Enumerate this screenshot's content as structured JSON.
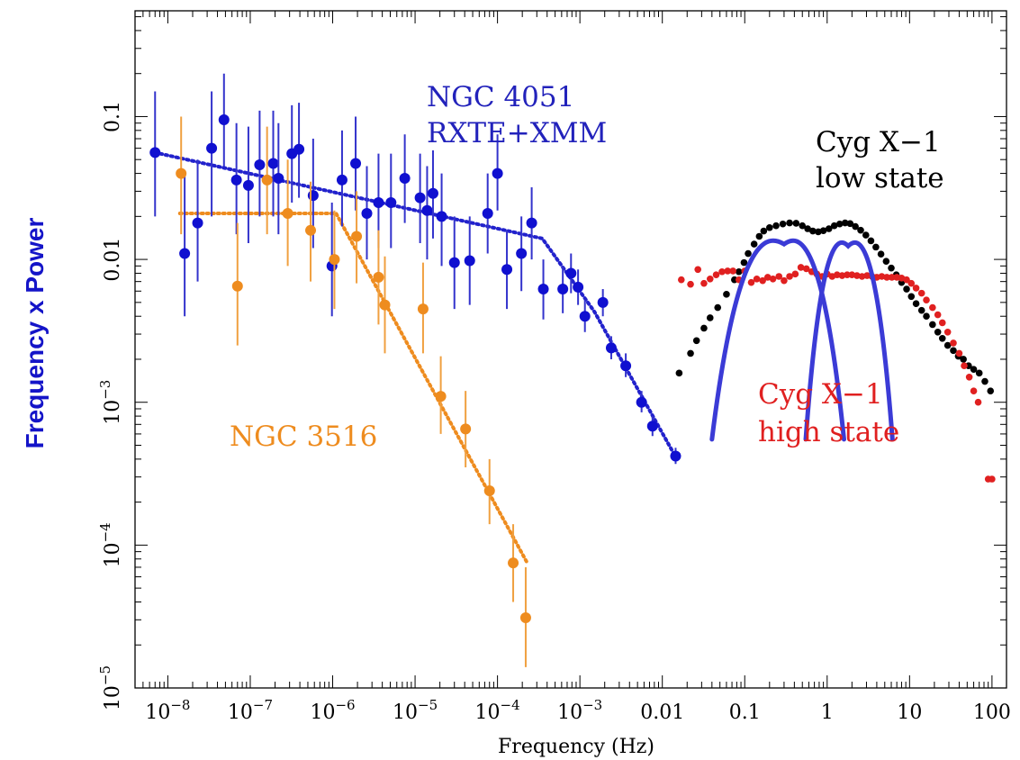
{
  "chart_data": {
    "type": "scatter",
    "xlabel": "Frequency (Hz)",
    "ylabel": "Frequency x Power",
    "xscale": "log",
    "yscale": "log",
    "xlim": [
      4e-09,
      150
    ],
    "ylim": [
      1e-05,
      0.55
    ],
    "x_ticks": [
      {
        "value": 1e-08,
        "base": "10",
        "exp": "−8"
      },
      {
        "value": 1e-07,
        "base": "10",
        "exp": "−7"
      },
      {
        "value": 1e-06,
        "base": "10",
        "exp": "−6"
      },
      {
        "value": 1e-05,
        "base": "10",
        "exp": "−5"
      },
      {
        "value": 0.0001,
        "base": "10",
        "exp": "−4"
      },
      {
        "value": 0.001,
        "base": "10",
        "exp": "−3"
      },
      {
        "value": 0.01,
        "base": "0.01",
        "exp": ""
      },
      {
        "value": 0.1,
        "base": "0.1",
        "exp": ""
      },
      {
        "value": 1,
        "base": "1",
        "exp": ""
      },
      {
        "value": 10,
        "base": "10",
        "exp": ""
      },
      {
        "value": 100,
        "base": "100",
        "exp": ""
      }
    ],
    "y_ticks": [
      {
        "value": 0.1,
        "base": "0.1",
        "exp": ""
      },
      {
        "value": 0.01,
        "base": "0.01",
        "exp": ""
      },
      {
        "value": 0.001,
        "base": "10",
        "exp": "−3"
      },
      {
        "value": 0.0001,
        "base": "10",
        "exp": "−4"
      },
      {
        "value": 1e-05,
        "base": "10",
        "exp": "−5"
      }
    ],
    "annotations": [
      {
        "lines": [
          "NGC 4051",
          "RXTE+XMM"
        ],
        "color": "#2222bb"
      },
      {
        "lines": [
          "Cyg X−1",
          "low state"
        ],
        "color": "#000000"
      },
      {
        "lines": [
          "NGC 3516"
        ],
        "color": "#ee8c1f"
      },
      {
        "lines": [
          "Cyg X−1",
          "high state"
        ],
        "color": "#e02020"
      }
    ],
    "series": [
      {
        "name": "NGC 4051",
        "color": "#1010d0",
        "errcolor": "#3333cc",
        "marker": "circle",
        "points": [
          [
            7e-09,
            0.056,
            0.02,
            0.15
          ],
          [
            1.6e-08,
            0.011,
            0.004,
            0.04
          ],
          [
            2.3e-08,
            0.018,
            0.007,
            0.05
          ],
          [
            3.4e-08,
            0.06,
            0.02,
            0.15
          ],
          [
            4.8e-08,
            0.095,
            0.045,
            0.2
          ],
          [
            6.8e-08,
            0.036,
            0.015,
            0.09
          ],
          [
            9.5e-08,
            0.033,
            0.013,
            0.085
          ],
          [
            1.3e-07,
            0.046,
            0.02,
            0.11
          ],
          [
            1.9e-07,
            0.047,
            0.02,
            0.11
          ],
          [
            2.2e-07,
            0.037,
            0.015,
            0.09
          ],
          [
            3.2e-07,
            0.055,
            0.025,
            0.12
          ],
          [
            3.9e-07,
            0.059,
            0.027,
            0.125
          ],
          [
            5.8e-07,
            0.028,
            0.012,
            0.07
          ],
          [
            9.8e-07,
            0.009,
            0.004,
            0.025
          ],
          [
            1.3e-06,
            0.036,
            0.017,
            0.08
          ],
          [
            1.9e-06,
            0.047,
            0.022,
            0.1
          ],
          [
            2.6e-06,
            0.021,
            0.01,
            0.045
          ],
          [
            3.6e-06,
            0.025,
            0.012,
            0.055
          ],
          [
            5.1e-06,
            0.025,
            0.012,
            0.055
          ],
          [
            7.5e-06,
            0.037,
            0.018,
            0.075
          ],
          [
            1.15e-05,
            0.027,
            0.013,
            0.055
          ],
          [
            1.4e-05,
            0.022,
            0.01,
            0.045
          ],
          [
            1.65e-05,
            0.029,
            0.014,
            0.058
          ],
          [
            2.1e-05,
            0.02,
            0.009,
            0.04
          ],
          [
            3e-05,
            0.0095,
            0.0045,
            0.02
          ],
          [
            4.6e-05,
            0.0098,
            0.0048,
            0.02
          ],
          [
            7.6e-05,
            0.021,
            0.011,
            0.04
          ],
          [
            0.0001,
            0.04,
            0.022,
            0.075
          ],
          [
            0.00013,
            0.0085,
            0.0045,
            0.016
          ],
          [
            0.000195,
            0.011,
            0.006,
            0.02
          ],
          [
            0.00026,
            0.018,
            0.01,
            0.032
          ],
          [
            0.00036,
            0.0062,
            0.0038,
            0.01
          ],
          [
            0.00062,
            0.0062,
            0.0042,
            0.009
          ],
          [
            0.00078,
            0.008,
            0.0058,
            0.011
          ],
          [
            0.00095,
            0.0064,
            0.0048,
            0.0085
          ],
          [
            0.00115,
            0.004,
            0.0031,
            0.0052
          ],
          [
            0.0019,
            0.005,
            0.004,
            0.0062
          ],
          [
            0.0024,
            0.0024,
            0.002,
            0.0029
          ],
          [
            0.0036,
            0.0018,
            0.0015,
            0.0022
          ],
          [
            0.0056,
            0.001,
            0.00085,
            0.0012
          ],
          [
            0.0076,
            0.00068,
            0.00058,
            0.0008
          ],
          [
            0.0145,
            0.00042,
            0.00037,
            0.00048
          ]
        ]
      },
      {
        "name": "NGC 3516",
        "color": "#ee8c1f",
        "errcolor": "#f0a040",
        "marker": "circle",
        "points": [
          [
            1.45e-08,
            0.04,
            0.015,
            0.1
          ],
          [
            7e-08,
            0.0065,
            0.0025,
            0.018
          ],
          [
            1.6e-07,
            0.036,
            0.015,
            0.085
          ],
          [
            2.85e-07,
            0.021,
            0.009,
            0.05
          ],
          [
            5.4e-07,
            0.016,
            0.007,
            0.035
          ],
          [
            1.05e-06,
            0.01,
            0.0045,
            0.022
          ],
          [
            1.95e-06,
            0.0145,
            0.0068,
            0.03
          ],
          [
            3.6e-06,
            0.0075,
            0.0035,
            0.016
          ],
          [
            4.3e-06,
            0.0048,
            0.0022,
            0.0105
          ],
          [
            1.25e-05,
            0.0045,
            0.0022,
            0.0095
          ],
          [
            2.05e-05,
            0.0011,
            0.0006,
            0.0021
          ],
          [
            4.1e-05,
            0.00065,
            0.00035,
            0.0012
          ],
          [
            8e-05,
            0.00024,
            0.00014,
            0.0004
          ],
          [
            0.000155,
            7.5e-05,
            4e-05,
            0.00014
          ],
          [
            0.00022,
            3.1e-05,
            1.4e-05,
            7e-05
          ]
        ]
      },
      {
        "name": "Cyg X−1 low state",
        "color": "#000000",
        "marker": "dot",
        "points": [
          [
            0.016,
            0.0016
          ],
          [
            0.022,
            0.0022
          ],
          [
            0.026,
            0.0027
          ],
          [
            0.032,
            0.0033
          ],
          [
            0.038,
            0.0039
          ],
          [
            0.047,
            0.0046
          ],
          [
            0.06,
            0.0057
          ],
          [
            0.075,
            0.0072
          ],
          [
            0.085,
            0.0082
          ],
          [
            0.098,
            0.0095
          ],
          [
            0.11,
            0.011
          ],
          [
            0.13,
            0.0128
          ],
          [
            0.15,
            0.0145
          ],
          [
            0.17,
            0.0158
          ],
          [
            0.2,
            0.0167
          ],
          [
            0.24,
            0.0172
          ],
          [
            0.29,
            0.0177
          ],
          [
            0.35,
            0.018
          ],
          [
            0.42,
            0.0179
          ],
          [
            0.5,
            0.0172
          ],
          [
            0.58,
            0.0164
          ],
          [
            0.67,
            0.0158
          ],
          [
            0.78,
            0.0156
          ],
          [
            0.9,
            0.0159
          ],
          [
            1.05,
            0.0164
          ],
          [
            1.22,
            0.0172
          ],
          [
            1.42,
            0.0177
          ],
          [
            1.65,
            0.018
          ],
          [
            1.9,
            0.0178
          ],
          [
            2.2,
            0.017
          ],
          [
            2.55,
            0.016
          ],
          [
            2.95,
            0.0148
          ],
          [
            3.4,
            0.0135
          ],
          [
            3.9,
            0.0122
          ],
          [
            4.5,
            0.0109
          ],
          [
            5.2,
            0.0097
          ],
          [
            6,
            0.0087
          ],
          [
            6.9,
            0.0078
          ],
          [
            8,
            0.0069
          ],
          [
            9.2,
            0.0062
          ],
          [
            10.5,
            0.0055
          ],
          [
            12,
            0.0049
          ],
          [
            14,
            0.0044
          ],
          [
            16,
            0.004
          ],
          [
            19,
            0.0035
          ],
          [
            22,
            0.0031
          ],
          [
            25,
            0.0028
          ],
          [
            29,
            0.0025
          ],
          [
            34,
            0.0023
          ],
          [
            39,
            0.0021
          ],
          [
            45,
            0.002
          ],
          [
            52,
            0.0018
          ],
          [
            60,
            0.0017
          ],
          [
            70,
            0.0016
          ],
          [
            82,
            0.0014
          ],
          [
            96,
            0.0012
          ]
        ]
      },
      {
        "name": "Cyg X−1 high state",
        "color": "#e02020",
        "marker": "dot",
        "points": [
          [
            0.017,
            0.0072
          ],
          [
            0.022,
            0.0067
          ],
          [
            0.027,
            0.0085
          ],
          [
            0.032,
            0.0068
          ],
          [
            0.038,
            0.0073
          ],
          [
            0.045,
            0.0078
          ],
          [
            0.053,
            0.0082
          ],
          [
            0.062,
            0.0083
          ],
          [
            0.072,
            0.0083
          ],
          [
            0.085,
            0.0072
          ],
          [
            0.1,
            0.0083
          ],
          [
            0.12,
            0.0069
          ],
          [
            0.14,
            0.0073
          ],
          [
            0.165,
            0.0071
          ],
          [
            0.19,
            0.0075
          ],
          [
            0.22,
            0.0073
          ],
          [
            0.26,
            0.0076
          ],
          [
            0.3,
            0.0071
          ],
          [
            0.35,
            0.0076
          ],
          [
            0.41,
            0.0079
          ],
          [
            0.48,
            0.0088
          ],
          [
            0.56,
            0.0086
          ],
          [
            0.65,
            0.0082
          ],
          [
            0.75,
            0.0079
          ],
          [
            0.87,
            0.0076
          ],
          [
            1,
            0.0079
          ],
          [
            1.15,
            0.0076
          ],
          [
            1.32,
            0.0078
          ],
          [
            1.52,
            0.0077
          ],
          [
            1.75,
            0.0078
          ],
          [
            2,
            0.0078
          ],
          [
            2.3,
            0.0077
          ],
          [
            2.65,
            0.0076
          ],
          [
            3.05,
            0.0077
          ],
          [
            3.5,
            0.0076
          ],
          [
            4,
            0.0075
          ],
          [
            4.6,
            0.0076
          ],
          [
            5.3,
            0.0075
          ],
          [
            6.1,
            0.0075
          ],
          [
            7,
            0.0075
          ],
          [
            8,
            0.0074
          ],
          [
            9.2,
            0.0072
          ],
          [
            10.5,
            0.0068
          ],
          [
            12,
            0.0063
          ],
          [
            14,
            0.0058
          ],
          [
            16,
            0.0052
          ],
          [
            19,
            0.0046
          ],
          [
            22,
            0.0041
          ],
          [
            25,
            0.0036
          ],
          [
            29,
            0.0031
          ],
          [
            34,
            0.0026
          ],
          [
            40,
            0.0022
          ],
          [
            46,
            0.0018
          ],
          [
            53,
            0.0015
          ],
          [
            60,
            0.0012
          ],
          [
            68,
            0.001
          ],
          [
            90,
            0.00029
          ],
          [
            100,
            0.00029
          ]
        ]
      }
    ],
    "fit_lines": [
      {
        "name": "NGC 4051 model",
        "color": "#2222cc",
        "points": [
          [
            7e-09,
            0.056
          ],
          [
            0.00035,
            0.014
          ],
          [
            0.0015,
            0.0043
          ],
          [
            0.014,
            0.00043
          ]
        ]
      },
      {
        "name": "NGC 3516 model",
        "color": "#ee8c1f",
        "points": [
          [
            1.4e-08,
            0.021
          ],
          [
            1.1e-06,
            0.021
          ],
          [
            0.00023,
            7.5e-05
          ]
        ]
      }
    ],
    "overlay_curves": [
      {
        "color": "#3b3bd6",
        "peak_x": 0.3,
        "peak_y": 0.0128,
        "left_x": 0.04,
        "right_x": 1.6,
        "base_y": 0.00055
      },
      {
        "color": "#3b3bd6",
        "peak_x": 1.8,
        "peak_y": 0.0124,
        "left_x": 0.55,
        "right_x": 6.2,
        "base_y": 0.00055
      }
    ]
  }
}
